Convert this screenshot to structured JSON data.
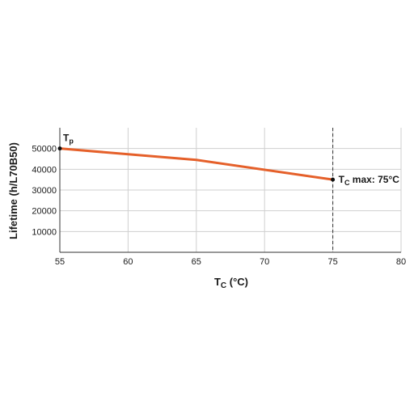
{
  "chart_data": {
    "type": "line",
    "xlabel": "Tc (°C)",
    "xlabel_main": "T",
    "xlabel_sub": "C",
    "xlabel_rest": " (°C)",
    "ylabel": "Lifetime (h/L70B50)",
    "xlim": [
      55,
      80
    ],
    "ylim": [
      0,
      60000
    ],
    "xticks": [
      "55",
      "60",
      "65",
      "70",
      "75",
      "80"
    ],
    "yticks": [
      "10000",
      "20000",
      "30000",
      "40000",
      "50000"
    ],
    "grid": true,
    "series": [
      {
        "color": "#e5602a",
        "x": [
          55,
          65,
          75
        ],
        "y": [
          50000,
          44500,
          35000
        ]
      }
    ],
    "reference_line": {
      "x": 75,
      "style": "dashed"
    },
    "annotations": [
      {
        "main": "T",
        "sub": "p",
        "rest": "",
        "x": 55,
        "y": 50000
      },
      {
        "main": "T",
        "sub": "C",
        "rest": " max: 75°C",
        "x": 75,
        "y": 35000
      }
    ]
  }
}
